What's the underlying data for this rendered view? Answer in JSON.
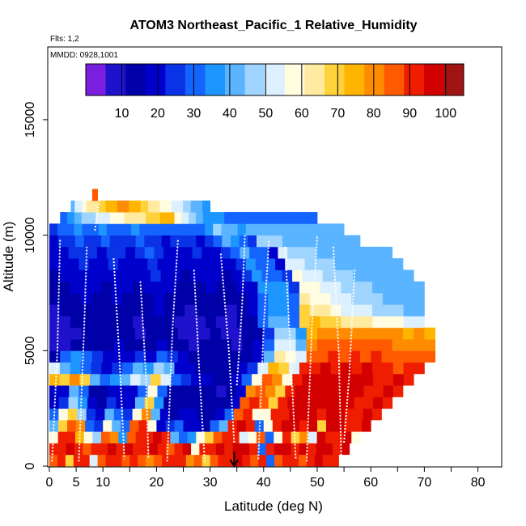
{
  "chart_data": {
    "type": "heatmap",
    "title": "ATOM3 Northeast_Pacific_1 Relative_Humidity",
    "flights_note": "Flts: 1,2",
    "date_note": "MMDD: 0928,1001",
    "xlabel": "Latitude (deg N)",
    "ylabel": "Altitude (m)",
    "xlim": [
      0,
      85
    ],
    "ylim": [
      0,
      18000
    ],
    "x_ticks": [
      0,
      5,
      10,
      20,
      30,
      40,
      50,
      60,
      70,
      80
    ],
    "y_ticks": [
      0,
      5000,
      10000,
      15000
    ],
    "colorbar": {
      "ticks": [
        10,
        20,
        30,
        40,
        50,
        60,
        70,
        80,
        90,
        100
      ],
      "range": [
        0,
        105
      ],
      "colors": [
        "#7a1fe0",
        "#1f12cc",
        "#0000a8",
        "#0000cc",
        "#0a32e6",
        "#1464ff",
        "#1e96ff",
        "#5ab4ff",
        "#9fd4ff",
        "#dcf0ff",
        "#fffce0",
        "#ffeaa0",
        "#ffd23c",
        "#ffb400",
        "#ff8c00",
        "#ff5a00",
        "#f01e00",
        "#d20000",
        "#a01414"
      ]
    },
    "altitude_bins_m": [
      0,
      500,
      1000,
      1500,
      2000,
      2500,
      3000,
      3500,
      4000,
      4500,
      5000,
      5500,
      6000,
      6500,
      7000,
      7500,
      8000,
      8500,
      9000,
      9500,
      10000,
      10500,
      11000,
      11500
    ],
    "rows": [
      {
        "alt": 0,
        "lat": [
          0,
          54
        ],
        "rh": [
          88,
          92,
          70,
          92,
          90,
          50,
          88,
          92,
          90,
          88,
          90,
          85,
          82,
          88,
          90,
          92,
          90,
          78,
          86,
          70,
          88,
          90,
          92,
          94,
          90,
          88,
          92,
          30,
          88,
          92,
          90,
          88,
          92,
          94,
          92,
          90
        ]
      },
      {
        "alt": 500,
        "lat": [
          0,
          56
        ],
        "rh": [
          92,
          90,
          94,
          92,
          88,
          90,
          92,
          94,
          90,
          96,
          92,
          90,
          94,
          92,
          88,
          90,
          94,
          60,
          92,
          90,
          94,
          92,
          96,
          94,
          92,
          30,
          90,
          94,
          96,
          92,
          94,
          90,
          94,
          96,
          92,
          94
        ]
      },
      {
        "alt": 1000,
        "lat": [
          0,
          58
        ],
        "rh": [
          60,
          90,
          92,
          75,
          60,
          45,
          85,
          80,
          35,
          88,
          92,
          90,
          94,
          92,
          40,
          30,
          35,
          60,
          70,
          88,
          92,
          90,
          50,
          60,
          88,
          30,
          60,
          92,
          70,
          80,
          50,
          94,
          92,
          90,
          94,
          60
        ]
      },
      {
        "alt": 1500,
        "lat": [
          0,
          60
        ],
        "rh": [
          40,
          70,
          85,
          80,
          30,
          25,
          60,
          40,
          28,
          85,
          90,
          60,
          20,
          25,
          30,
          20,
          18,
          15,
          30,
          40,
          92,
          94,
          90,
          30,
          60,
          92,
          94,
          96,
          92,
          94,
          70,
          96,
          94,
          92,
          90,
          94
        ]
      },
      {
        "alt": 2000,
        "lat": [
          0,
          62
        ],
        "rh": [
          30,
          60,
          70,
          45,
          25,
          20,
          40,
          30,
          25,
          60,
          80,
          40,
          18,
          16,
          20,
          18,
          15,
          14,
          20,
          30,
          88,
          92,
          60,
          60,
          90,
          92,
          94,
          96,
          94,
          92,
          94,
          96,
          90,
          92,
          94,
          92
        ]
      },
      {
        "alt": 2500,
        "lat": [
          0,
          64
        ],
        "rh": [
          20,
          25,
          45,
          35,
          18,
          15,
          25,
          22,
          20,
          40,
          70,
          35,
          16,
          14,
          15,
          14,
          13,
          12,
          15,
          20,
          85,
          90,
          88,
          70,
          92,
          94,
          96,
          94,
          96,
          94,
          96,
          94,
          92,
          90,
          94,
          92
        ]
      },
      {
        "alt": 3000,
        "lat": [
          0,
          66
        ],
        "rh": [
          20,
          20,
          40,
          30,
          16,
          14,
          20,
          18,
          18,
          30,
          60,
          30,
          14,
          12,
          13,
          12,
          12,
          11,
          14,
          18,
          80,
          88,
          80,
          70,
          92,
          94,
          96,
          94,
          96,
          94,
          96,
          94,
          92,
          90,
          94,
          92
        ]
      },
      {
        "alt": 3500,
        "lat": [
          0,
          68
        ],
        "rh": [
          75,
          70,
          80,
          70,
          40,
          30,
          35,
          40,
          50,
          45,
          70,
          50,
          30,
          25,
          20,
          18,
          16,
          15,
          20,
          30,
          60,
          85,
          80,
          60,
          92,
          94,
          95,
          94,
          96,
          94,
          95,
          94,
          92,
          90,
          94,
          92
        ]
      },
      {
        "alt": 4000,
        "lat": [
          0,
          70
        ],
        "rh": [
          55,
          40,
          35,
          30,
          25,
          20,
          25,
          30,
          40,
          35,
          45,
          40,
          20,
          18,
          16,
          15,
          14,
          14,
          18,
          25,
          50,
          75,
          70,
          55,
          90,
          92,
          94,
          92,
          94,
          92,
          94,
          92,
          90,
          88,
          92,
          90
        ]
      },
      {
        "alt": 4500,
        "lat": [
          0,
          72
        ],
        "rh": [
          15,
          30,
          35,
          30,
          25,
          20,
          22,
          20,
          25,
          22,
          30,
          25,
          18,
          16,
          15,
          14,
          13,
          13,
          16,
          20,
          40,
          65,
          60,
          50,
          85,
          88,
          90,
          88,
          90,
          88,
          90,
          88,
          88,
          86,
          88,
          86
        ]
      },
      {
        "alt": 5000,
        "lat": [
          0,
          72
        ],
        "rh": [
          8,
          10,
          12,
          14,
          16,
          14,
          18,
          14,
          12,
          14,
          18,
          14,
          12,
          10,
          12,
          14,
          12,
          11,
          14,
          18,
          30,
          55,
          50,
          40,
          80,
          85,
          86,
          84,
          86,
          84,
          86,
          84,
          82,
          80,
          82,
          80
        ]
      },
      {
        "alt": 5500,
        "lat": [
          0,
          72
        ],
        "rh": [
          6,
          8,
          10,
          12,
          14,
          12,
          14,
          12,
          10,
          12,
          14,
          12,
          10,
          9,
          10,
          12,
          10,
          10,
          12,
          16,
          25,
          45,
          45,
          35,
          75,
          80,
          82,
          80,
          82,
          80,
          82,
          80,
          78,
          76,
          78,
          76
        ]
      },
      {
        "alt": 6000,
        "lat": [
          0,
          70
        ],
        "rh": [
          8,
          10,
          12,
          14,
          12,
          12,
          14,
          12,
          10,
          12,
          16,
          12,
          10,
          9,
          10,
          12,
          10,
          10,
          12,
          16,
          28,
          40,
          40,
          32,
          70,
          72,
          70,
          68,
          66,
          64,
          62,
          60,
          58,
          56,
          55,
          54
        ]
      },
      {
        "alt": 6500,
        "lat": [
          0,
          70
        ],
        "rh": [
          10,
          12,
          14,
          16,
          14,
          12,
          16,
          14,
          12,
          14,
          18,
          14,
          12,
          10,
          12,
          14,
          12,
          11,
          14,
          18,
          30,
          38,
          38,
          30,
          68,
          66,
          62,
          58,
          55,
          52,
          50,
          48,
          46,
          45,
          44,
          44
        ]
      },
      {
        "alt": 7000,
        "lat": [
          0,
          70
        ],
        "rh": [
          12,
          14,
          16,
          18,
          16,
          14,
          18,
          16,
          14,
          16,
          20,
          16,
          14,
          12,
          14,
          16,
          14,
          12,
          16,
          20,
          32,
          36,
          36,
          28,
          65,
          60,
          56,
          52,
          50,
          48,
          46,
          45,
          44,
          43,
          42,
          42
        ]
      },
      {
        "alt": 7500,
        "lat": [
          0,
          70
        ],
        "rh": [
          14,
          16,
          18,
          20,
          18,
          16,
          20,
          18,
          16,
          18,
          22,
          18,
          16,
          14,
          16,
          18,
          16,
          14,
          18,
          22,
          34,
          34,
          34,
          26,
          60,
          56,
          52,
          50,
          48,
          46,
          45,
          44,
          43,
          42,
          42,
          42
        ]
      },
      {
        "alt": 8000,
        "lat": [
          0,
          68
        ],
        "rh": [
          16,
          18,
          20,
          22,
          20,
          18,
          22,
          20,
          18,
          20,
          24,
          20,
          18,
          16,
          18,
          20,
          18,
          16,
          20,
          24,
          36,
          32,
          32,
          24,
          56,
          52,
          50,
          48,
          46,
          45,
          44,
          43,
          42,
          42,
          42,
          42
        ]
      },
      {
        "alt": 8500,
        "lat": [
          0,
          66
        ],
        "rh": [
          18,
          20,
          22,
          24,
          22,
          20,
          24,
          22,
          20,
          22,
          26,
          22,
          20,
          18,
          20,
          22,
          20,
          18,
          22,
          26,
          38,
          30,
          30,
          22,
          52,
          50,
          48,
          46,
          45,
          44,
          43,
          42,
          42,
          42,
          42,
          42
        ]
      },
      {
        "alt": 9000,
        "lat": [
          0,
          64
        ],
        "rh": [
          20,
          22,
          24,
          26,
          24,
          22,
          26,
          24,
          22,
          24,
          28,
          24,
          22,
          20,
          22,
          24,
          22,
          20,
          24,
          28,
          40,
          30,
          28,
          22,
          50,
          48,
          46,
          45,
          44,
          43,
          42,
          42,
          42,
          42,
          42,
          42
        ]
      },
      {
        "alt": 9500,
        "lat": [
          0,
          58
        ],
        "rh": [
          22,
          24,
          26,
          28,
          26,
          24,
          28,
          26,
          24,
          26,
          30,
          26,
          24,
          22,
          24,
          26,
          24,
          22,
          26,
          30,
          42,
          36,
          30,
          24,
          48,
          46,
          45,
          44,
          43,
          42,
          42,
          42,
          42,
          42,
          42,
          42
        ]
      },
      {
        "alt": 10000,
        "lat": [
          0,
          55
        ],
        "rh": [
          26,
          28,
          32,
          34,
          32,
          30,
          34,
          32,
          30,
          32,
          36,
          32,
          30,
          28,
          30,
          32,
          30,
          28,
          32,
          36,
          46,
          42,
          40,
          38,
          44,
          42,
          42,
          42,
          42,
          42,
          42,
          42,
          42,
          42,
          42,
          42
        ]
      },
      {
        "alt": 10500,
        "lat": [
          2,
          50
        ],
        "rh": [
          30,
          34,
          40,
          45,
          48,
          52,
          55,
          58,
          60,
          62,
          64,
          66,
          68,
          70,
          72,
          74,
          60,
          50,
          45,
          40,
          38,
          36,
          34,
          32,
          30,
          30,
          30,
          30,
          30,
          30,
          30,
          30,
          30,
          30,
          30,
          30
        ]
      },
      {
        "alt": 11000,
        "lat": [
          4,
          30
        ],
        "rh": [
          40,
          50,
          55,
          60,
          62,
          64,
          66,
          68,
          70,
          72,
          74,
          76,
          78,
          80,
          78,
          76,
          74,
          72,
          70,
          68,
          66,
          64,
          62,
          60,
          58,
          56,
          54,
          52,
          50,
          48,
          46,
          44,
          42,
          40,
          38,
          36
        ]
      },
      {
        "alt": 11500,
        "lat": [
          8,
          9
        ],
        "rh": [
          85,
          85,
          85,
          85,
          85,
          85,
          85,
          85,
          85,
          85,
          85,
          85,
          85,
          85,
          85,
          85,
          85,
          85,
          85,
          85,
          85,
          85,
          85,
          85,
          85,
          85,
          85,
          85,
          85,
          85,
          85,
          85,
          85,
          85,
          85,
          85
        ]
      }
    ],
    "flight_tracks": [
      [
        [
          0.5,
          200
        ],
        [
          1.5,
          5000
        ],
        [
          2,
          9800
        ]
      ],
      [
        [
          5.5,
          200
        ],
        [
          6.5,
          6000
        ],
        [
          7,
          9500
        ]
      ],
      [
        [
          8.5,
          10200
        ],
        [
          9.5,
          11800
        ]
      ],
      [
        [
          12,
          9000
        ],
        [
          13,
          5000
        ],
        [
          14,
          300
        ]
      ],
      [
        [
          17,
          8000
        ],
        [
          18,
          4000
        ],
        [
          18.5,
          300
        ]
      ],
      [
        [
          22,
          200
        ],
        [
          23,
          6000
        ],
        [
          24,
          9800
        ]
      ],
      [
        [
          27,
          8500
        ],
        [
          28,
          4000
        ],
        [
          29,
          200
        ]
      ],
      [
        [
          32,
          9200
        ],
        [
          33.5,
          5000
        ],
        [
          34.5,
          1000
        ]
      ],
      [
        [
          35,
          3500
        ],
        [
          36,
          7000
        ],
        [
          36.5,
          10000
        ]
      ],
      [
        [
          39,
          300
        ],
        [
          40,
          6000
        ],
        [
          41,
          9800
        ]
      ],
      [
        [
          44,
          9500
        ],
        [
          45,
          5000
        ],
        [
          46,
          300
        ]
      ],
      [
        [
          48,
          200
        ],
        [
          49,
          6000
        ],
        [
          50,
          10000
        ]
      ],
      [
        [
          53,
          9500
        ],
        [
          54,
          5000
        ],
        [
          54.5,
          300
        ]
      ],
      [
        [
          57,
          8500
        ],
        [
          56,
          4000
        ],
        [
          55,
          1000
        ]
      ]
    ],
    "marker": {
      "lat": 34.5,
      "alt": 0
    }
  }
}
